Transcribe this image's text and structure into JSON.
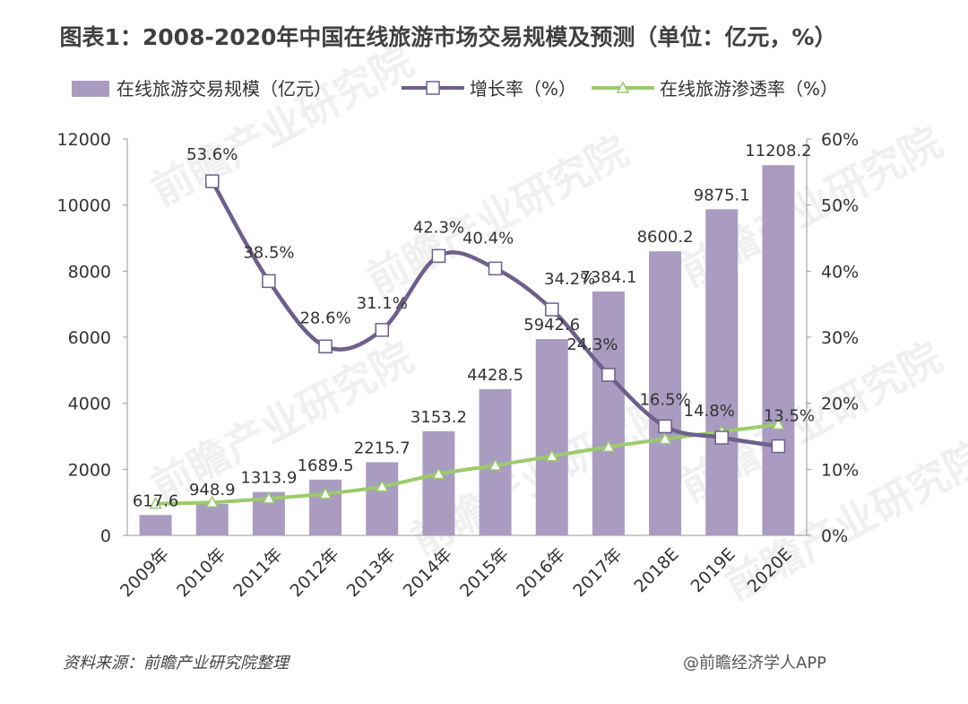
{
  "title": "图表1：2008-2020年中国在线旅游市场交易规模及预测（单位：亿元，%）",
  "source": "资料来源：前瞻产业研究院整理",
  "credit": "@前瞻经济学人APP",
  "watermark": "前瞻产业研究院",
  "colors": {
    "bar": "#a99cc0",
    "growth": "#6e5f8c",
    "penetration": "#9bcb6b"
  },
  "chart_data": {
    "type": "bar+line",
    "categories": [
      "2009年",
      "2010年",
      "2011年",
      "2012年",
      "2013年",
      "2014年",
      "2015年",
      "2016年",
      "2017年",
      "2018E",
      "2019E",
      "2020E"
    ],
    "left_axis": {
      "min": 0,
      "max": 12000,
      "ticks": [
        0,
        2000,
        4000,
        6000,
        8000,
        10000,
        12000
      ]
    },
    "right_axis": {
      "min": 0,
      "max": 60,
      "ticks": [
        "0%",
        "10%",
        "20%",
        "30%",
        "40%",
        "50%",
        "60%"
      ]
    },
    "series": [
      {
        "name": "在线旅游交易规模（亿元）",
        "type": "bar",
        "axis": "left",
        "values": [
          617.6,
          948.9,
          1313.9,
          1689.5,
          2215.7,
          3153.2,
          4428.5,
          5942.6,
          7384.1,
          8600.2,
          9875.1,
          11208.2
        ],
        "labels": [
          "617.6",
          "948.9",
          "1313.9",
          "1689.5",
          "2215.7",
          "3153.2",
          "4428.5",
          "5942.6",
          "7384.1",
          "8600.2",
          "9875.1",
          "11208.2"
        ]
      },
      {
        "name": "增长率（%）",
        "type": "line",
        "axis": "right",
        "marker": "square",
        "values": [
          null,
          53.6,
          38.5,
          28.6,
          31.1,
          42.3,
          40.4,
          34.2,
          24.3,
          16.5,
          14.8,
          13.5
        ],
        "labels": [
          null,
          "53.6%",
          "38.5%",
          "28.6%",
          "31.1%",
          "42.3%",
          "40.4%",
          "34.2%",
          "24.3%",
          "16.5%",
          "14.8%",
          "13.5%"
        ]
      },
      {
        "name": "在线旅游渗透率（%）",
        "type": "line",
        "axis": "right",
        "marker": "triangle",
        "values": [
          4.8,
          5.0,
          5.6,
          6.3,
          7.4,
          9.3,
          10.6,
          12.0,
          13.4,
          14.6,
          15.7,
          16.8
        ]
      }
    ]
  }
}
